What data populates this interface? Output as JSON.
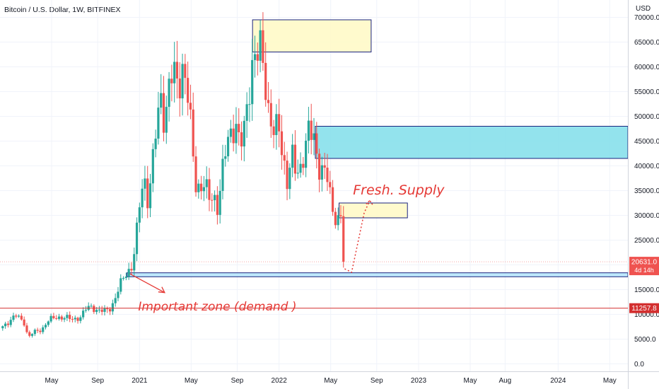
{
  "header": {
    "title": "Bitcoin / U.S. Dollar, 1W, BITFINEX"
  },
  "colors": {
    "up": "#26a69a",
    "down": "#ef5350",
    "accent_red": "#e53935",
    "price_tag": "#ef5350",
    "level_tag": "#d32f2f"
  },
  "chart_data": {
    "type": "candlestick",
    "title": "Bitcoin / U.S. Dollar, 1W, BITFINEX",
    "y_unit": "USD",
    "ylim": [
      -1500,
      73500
    ],
    "yticks": [
      0,
      5000,
      10000,
      15000,
      20000,
      25000,
      30000,
      35000,
      40000,
      45000,
      50000,
      55000,
      60000,
      65000,
      70000
    ],
    "ytick_labels": [
      "0.0",
      "5000.0",
      "10000.0",
      "15000.0",
      "20000.0",
      "25000.0",
      "30000.0",
      "35000.0",
      "40000.0",
      "45000.0",
      "50000.0",
      "55000.0",
      "60000.0",
      "65000.0",
      "70000.0"
    ],
    "xlim": [
      2020.0,
      2024.5
    ],
    "xticks": [
      {
        "x": 2020.37,
        "label": "May"
      },
      {
        "x": 2020.7,
        "label": "Sep"
      },
      {
        "x": 2021.0,
        "label": "2021"
      },
      {
        "x": 2021.37,
        "label": "May"
      },
      {
        "x": 2021.7,
        "label": "Sep"
      },
      {
        "x": 2022.0,
        "label": "2022"
      },
      {
        "x": 2022.37,
        "label": "May"
      },
      {
        "x": 2022.7,
        "label": "Sep"
      },
      {
        "x": 2023.0,
        "label": "2023"
      },
      {
        "x": 2023.37,
        "label": "May"
      },
      {
        "x": 2023.62,
        "label": "Aug"
      },
      {
        "x": 2024.0,
        "label": "2024"
      },
      {
        "x": 2024.37,
        "label": "May"
      }
    ],
    "close_path": [
      [
        2020.0,
        7200
      ],
      [
        2020.06,
        8500
      ],
      [
        2020.12,
        9800
      ],
      [
        2020.18,
        8200
      ],
      [
        2020.2,
        5200
      ],
      [
        2020.24,
        6400
      ],
      [
        2020.3,
        7000
      ],
      [
        2020.35,
        8800
      ],
      [
        2020.4,
        9500
      ],
      [
        2020.46,
        9300
      ],
      [
        2020.52,
        9100
      ],
      [
        2020.58,
        9400
      ],
      [
        2020.62,
        11300
      ],
      [
        2020.66,
        11700
      ],
      [
        2020.7,
        10600
      ],
      [
        2020.75,
        10700
      ],
      [
        2020.8,
        11600
      ],
      [
        2020.83,
        13500
      ],
      [
        2020.86,
        15800
      ],
      [
        2020.9,
        18500
      ],
      [
        2020.94,
        19200
      ],
      [
        2020.97,
        23500
      ],
      [
        2021.0,
        32000
      ],
      [
        2021.03,
        38500
      ],
      [
        2021.06,
        33000
      ],
      [
        2021.09,
        39000
      ],
      [
        2021.12,
        47500
      ],
      [
        2021.15,
        55000
      ],
      [
        2021.18,
        49000
      ],
      [
        2021.22,
        57000
      ],
      [
        2021.25,
        58500
      ],
      [
        2021.28,
        57000
      ],
      [
        2021.31,
        60000
      ],
      [
        2021.34,
        55000
      ],
      [
        2021.37,
        47000
      ],
      [
        2021.4,
        37000
      ],
      [
        2021.43,
        35500
      ],
      [
        2021.46,
        36000
      ],
      [
        2021.5,
        33500
      ],
      [
        2021.53,
        34500
      ],
      [
        2021.56,
        31500
      ],
      [
        2021.6,
        39500
      ],
      [
        2021.63,
        45500
      ],
      [
        2021.66,
        47500
      ],
      [
        2021.69,
        48500
      ],
      [
        2021.72,
        43000
      ],
      [
        2021.75,
        47500
      ],
      [
        2021.78,
        55000
      ],
      [
        2021.81,
        61000
      ],
      [
        2021.84,
        61500
      ],
      [
        2021.87,
        64000
      ],
      [
        2021.9,
        58000
      ],
      [
        2021.93,
        50000
      ],
      [
        2021.96,
        46500
      ],
      [
        2022.0,
        47500
      ],
      [
        2022.03,
        42000
      ],
      [
        2022.06,
        36500
      ],
      [
        2022.09,
        42000
      ],
      [
        2022.12,
        38500
      ],
      [
        2022.15,
        39500
      ],
      [
        2022.19,
        44500
      ],
      [
        2022.21,
        46500
      ],
      [
        2022.25,
        45500
      ],
      [
        2022.28,
        40500
      ],
      [
        2022.31,
        39500
      ],
      [
        2022.35,
        37000
      ],
      [
        2022.38,
        31000
      ],
      [
        2022.42,
        29500
      ],
      [
        2022.45,
        30000
      ],
      [
        2022.46,
        28500
      ],
      [
        2022.47,
        20631
      ]
    ],
    "last_price": {
      "value": 20631.0,
      "label": "20631.0",
      "countdown": "4d 14h"
    },
    "level": {
      "value": 11257.8,
      "label": "11257.8"
    },
    "zones": [
      {
        "name": "supply-zone-top",
        "x0": 2021.81,
        "x1": 2022.66,
        "y0": 63000,
        "y1": 69500,
        "fill": "#fff9c4",
        "stroke": "#1a237e"
      },
      {
        "name": "supply-zone-right",
        "x0": 2022.26,
        "x1": 2024.5,
        "y0": 41500,
        "y1": 48000,
        "fill": "#80deea",
        "stroke": "#1a237e"
      },
      {
        "name": "fresh-supply-zone",
        "x0": 2022.43,
        "x1": 2022.92,
        "y0": 29500,
        "y1": 32500,
        "fill": "#fff9c4",
        "stroke": "#1a237e"
      },
      {
        "name": "demand-zone",
        "x0": 2020.91,
        "x1": 2024.5,
        "y0": 17600,
        "y1": 18400,
        "fill": "#b3e5fc",
        "stroke": "#1a237e"
      }
    ],
    "projection": [
      [
        2022.47,
        19200
      ],
      [
        2022.52,
        18500
      ],
      [
        2022.61,
        30500
      ],
      [
        2022.65,
        33000
      ]
    ],
    "annotations": [
      {
        "text": "Fresh. Supply",
        "x": 2022.53,
        "y": 34200
      },
      {
        "text": "Important zone (demand )",
        "x": 2020.99,
        "y": 10800
      }
    ],
    "demand_arrow": [
      [
        2020.93,
        18200
      ],
      [
        2021.18,
        14400
      ]
    ]
  }
}
